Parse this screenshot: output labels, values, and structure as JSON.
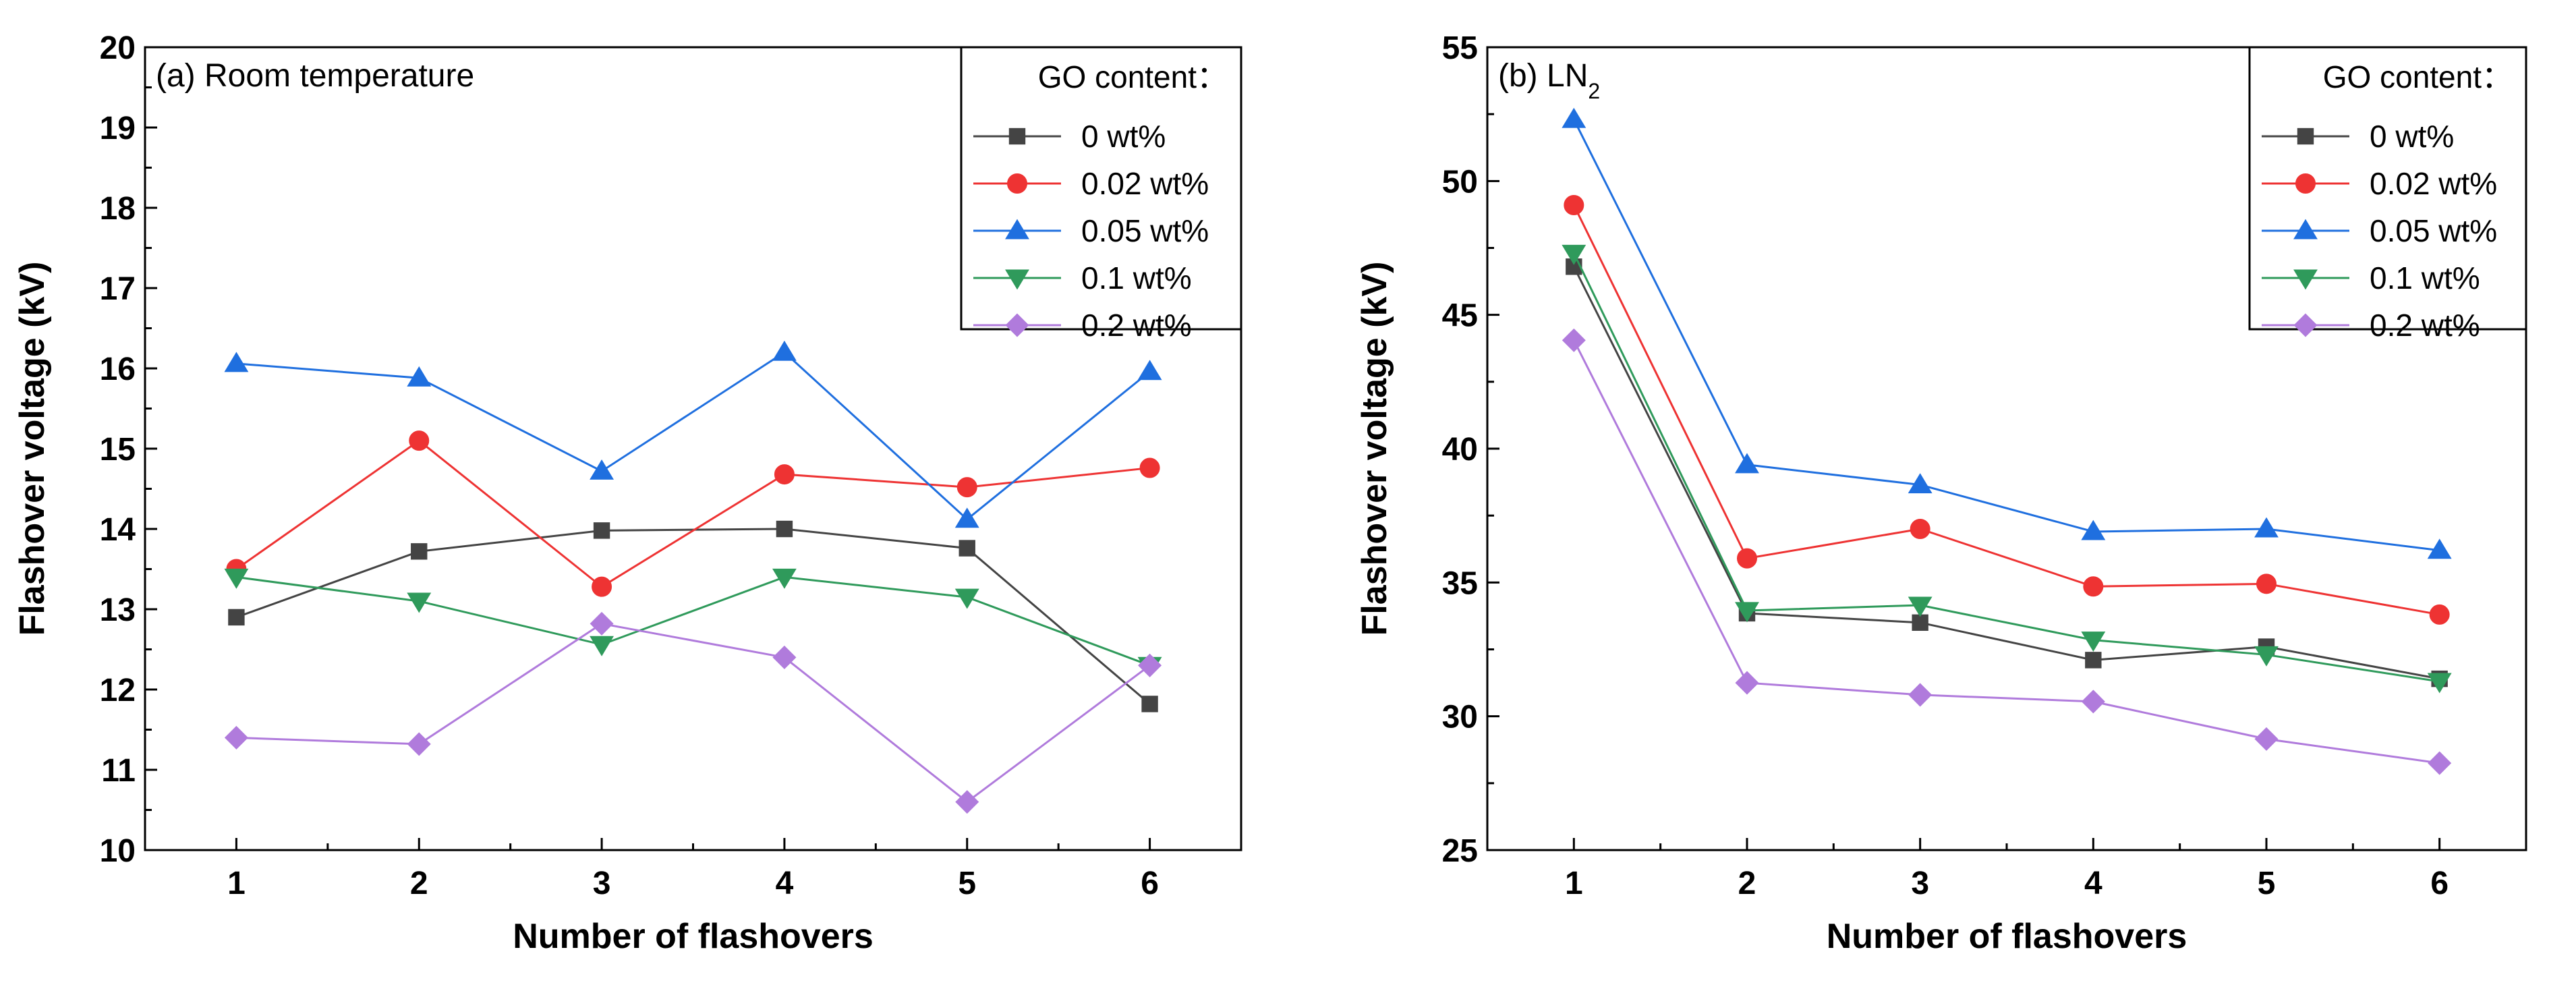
{
  "chart_data": [
    {
      "type": "line",
      "panel_label": "(a) Room temperature",
      "title": "",
      "xlabel": "Number of flashovers",
      "ylabel": "Flashover voltage (kV)",
      "x": [
        1,
        2,
        3,
        4,
        5,
        6
      ],
      "xlim": [
        0.5,
        6.5
      ],
      "ylim": [
        10,
        20
      ],
      "yticks": [
        10,
        11,
        12,
        13,
        14,
        15,
        16,
        17,
        18,
        19,
        20
      ],
      "legend": {
        "title": "GO content：",
        "placement": "top-right"
      },
      "series": [
        {
          "name": "0 wt%",
          "color": "#444444",
          "marker": "square",
          "values": [
            12.9,
            13.72,
            13.98,
            14.0,
            13.76,
            11.82
          ]
        },
        {
          "name": "0.02 wt%",
          "color": "#ee3333",
          "marker": "circle",
          "values": [
            13.5,
            15.1,
            13.28,
            14.68,
            14.52,
            14.76
          ]
        },
        {
          "name": "0.05 wt%",
          "color": "#1f6fdf",
          "marker": "triangle-up",
          "values": [
            16.06,
            15.88,
            14.72,
            16.2,
            14.12,
            15.96
          ]
        },
        {
          "name": "0.1 wt%",
          "color": "#2f9a5b",
          "marker": "triangle-down",
          "values": [
            13.4,
            13.1,
            12.56,
            13.4,
            13.15,
            12.3
          ]
        },
        {
          "name": "0.2 wt%",
          "color": "#b07bdc",
          "marker": "diamond",
          "values": [
            11.4,
            11.32,
            12.82,
            12.4,
            10.6,
            12.3
          ]
        }
      ]
    },
    {
      "type": "line",
      "panel_label": "(b) LN",
      "panel_label_sub": "2",
      "title": "",
      "xlabel": "Number of flashovers",
      "ylabel": "Flashover voltage (kV)",
      "x": [
        1,
        2,
        3,
        4,
        5,
        6
      ],
      "xlim": [
        0.5,
        6.5
      ],
      "ylim": [
        25,
        55
      ],
      "yticks": [
        25,
        30,
        35,
        40,
        45,
        50,
        55
      ],
      "legend": {
        "title": "GO content：",
        "placement": "top-right"
      },
      "series": [
        {
          "name": "0 wt%",
          "color": "#444444",
          "marker": "square",
          "values": [
            46.8,
            33.85,
            33.5,
            32.1,
            32.6,
            31.4
          ]
        },
        {
          "name": "0.02 wt%",
          "color": "#ee3333",
          "marker": "circle",
          "values": [
            49.1,
            35.9,
            37.0,
            34.85,
            34.95,
            33.8
          ]
        },
        {
          "name": "0.05 wt%",
          "color": "#1f6fdf",
          "marker": "triangle-up",
          "values": [
            52.3,
            39.4,
            38.65,
            36.9,
            37.0,
            36.2
          ]
        },
        {
          "name": "0.1 wt%",
          "color": "#2f9a5b",
          "marker": "triangle-down",
          "values": [
            47.3,
            33.95,
            34.15,
            32.85,
            32.3,
            31.3
          ]
        },
        {
          "name": "0.2 wt%",
          "color": "#b07bdc",
          "marker": "diamond",
          "values": [
            44.05,
            31.25,
            30.8,
            30.55,
            29.15,
            28.25
          ]
        }
      ]
    }
  ]
}
